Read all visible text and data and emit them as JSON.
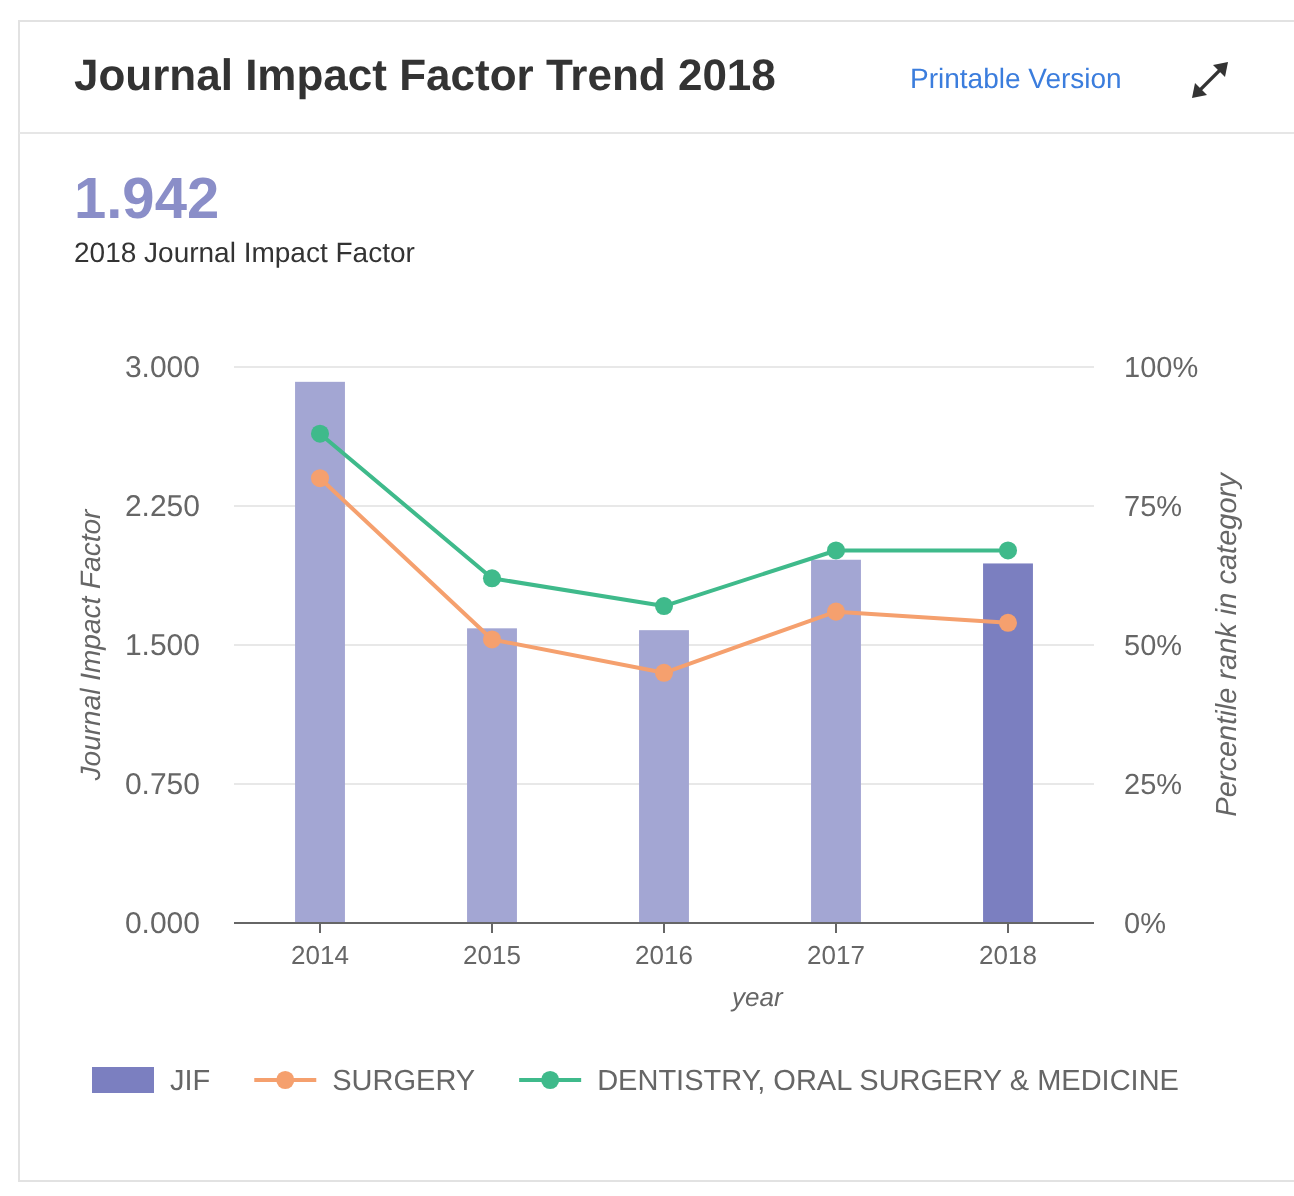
{
  "chart_data": {
    "type": "bar",
    "title": "Journal Impact Factor Trend 2018",
    "annotations": [
      "Printable Version",
      "1.942",
      "2018 Journal Impact Factor"
    ],
    "xlabel": "year",
    "ylabel": "Journal Impact Factor",
    "y2label": "Percentile rank in category",
    "categories": [
      "2014",
      "2015",
      "2016",
      "2017",
      "2018"
    ],
    "series": [
      {
        "name": "JIF",
        "color": "#7b7fc0",
        "colors": [
          "#a3a6d3",
          "#a3a6d3",
          "#a3a6d3",
          "#a3a6d3",
          "#7b7fc0"
        ],
        "values": [
          2.92,
          1.59,
          1.58,
          1.96,
          1.94
        ]
      },
      {
        "name": "SURGERY",
        "type": "line",
        "axis": "y2",
        "color": "#f5a06e",
        "values": [
          80,
          51,
          45,
          56,
          54
        ]
      },
      {
        "name": "DENTISTRY, ORAL SURGERY & MEDICINE",
        "type": "line",
        "axis": "y2",
        "color": "#3fba8b",
        "values": [
          88,
          62,
          57,
          67,
          67
        ]
      }
    ],
    "ylim": [
      0,
      3
    ],
    "yticks": [
      {
        "value": 0,
        "label": "0.000"
      },
      {
        "value": 0.75,
        "label": "0.750"
      },
      {
        "value": 1.5,
        "label": "1.500"
      },
      {
        "value": 2.25,
        "label": "2.250"
      },
      {
        "value": 3,
        "label": "3.000"
      }
    ],
    "y2lim": [
      0,
      100
    ],
    "y2ticks": [
      {
        "value": 0,
        "label": "0%"
      },
      {
        "value": 25,
        "label": "25%"
      },
      {
        "value": 50,
        "label": "50%"
      },
      {
        "value": 75,
        "label": "75%"
      },
      {
        "value": 100,
        "label": "100%"
      }
    ],
    "grid": "y",
    "legend": "bottom",
    "marker": "circle",
    "line_style": "solid"
  }
}
